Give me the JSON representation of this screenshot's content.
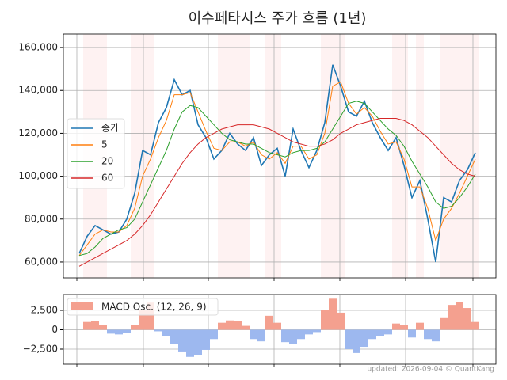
{
  "chart_data": [
    {
      "type": "line",
      "title": "이수페타시스 주가 흐름 (1년)",
      "ylim": [
        52600,
        166300
      ],
      "yticks": [
        {
          "value": 60000,
          "label": "60,000"
        },
        {
          "value": 80000,
          "label": "80,000"
        },
        {
          "value": 100000,
          "label": "100,000"
        },
        {
          "value": 120000,
          "label": "120,000"
        },
        {
          "value": 140000,
          "label": "140,000"
        },
        {
          "value": 160000,
          "label": "160,000"
        }
      ],
      "grid": true,
      "legend": "center left",
      "series": [
        {
          "name": "종가",
          "color": "#1f77b4",
          "values": [
            64000,
            72000,
            77000,
            75000,
            73000,
            74000,
            80000,
            92000,
            112000,
            110000,
            125000,
            132000,
            145000,
            138000,
            140000,
            124000,
            118000,
            108000,
            112000,
            120000,
            115000,
            112000,
            118000,
            105000,
            110000,
            113000,
            100000,
            122000,
            112000,
            104000,
            112000,
            125000,
            152000,
            142000,
            130000,
            128000,
            135000,
            125000,
            118000,
            112000,
            118000,
            105000,
            90000,
            98000,
            80000,
            60000,
            90000,
            88000,
            98000,
            103000,
            111000
          ]
        },
        {
          "name": "5",
          "color": "#ff7f0e",
          "values": [
            63000,
            68000,
            73000,
            75000,
            74000,
            74000,
            77000,
            85000,
            100000,
            108000,
            118000,
            126000,
            138000,
            138000,
            139000,
            130000,
            121000,
            113000,
            112000,
            116000,
            116000,
            114000,
            116000,
            110000,
            108000,
            111000,
            106000,
            114000,
            114000,
            108000,
            110000,
            120000,
            142000,
            144000,
            134000,
            129000,
            132000,
            128000,
            121000,
            115000,
            116000,
            108000,
            95000,
            95000,
            85000,
            70000,
            80000,
            85000,
            92000,
            100000,
            108000
          ]
        },
        {
          "name": "20",
          "color": "#2ca02c",
          "values": [
            63000,
            64000,
            67000,
            71000,
            73000,
            75000,
            76000,
            80000,
            88000,
            96000,
            104000,
            112000,
            122000,
            130000,
            133000,
            132000,
            128000,
            124000,
            120000,
            117000,
            116000,
            115000,
            115000,
            113000,
            111000,
            110000,
            109000,
            111000,
            112000,
            112000,
            113000,
            116000,
            122000,
            128000,
            134000,
            135000,
            134000,
            130000,
            126000,
            122000,
            119000,
            114000,
            107000,
            101000,
            95000,
            88000,
            85000,
            86000,
            90000,
            95000,
            101000
          ]
        },
        {
          "name": "60",
          "color": "#d62728",
          "values": [
            58000,
            60000,
            62000,
            64000,
            66000,
            68000,
            70000,
            73000,
            77000,
            82000,
            88000,
            94000,
            100000,
            106000,
            111000,
            115000,
            118000,
            120000,
            122000,
            123000,
            124000,
            124000,
            124000,
            123000,
            122000,
            120000,
            118000,
            116000,
            115000,
            114000,
            114000,
            115000,
            117000,
            120000,
            122000,
            124000,
            125000,
            126000,
            127000,
            127000,
            127000,
            126000,
            124000,
            121000,
            118000,
            114000,
            110000,
            106000,
            103000,
            101000,
            100000
          ]
        }
      ]
    },
    {
      "type": "bar",
      "ylim": [
        -4440,
        4540
      ],
      "yticks": [
        {
          "value": -2500,
          "label": "−2,500"
        },
        0,
        {
          "value": 2500,
          "label": "2,500"
        }
      ],
      "grid": true,
      "legend": "upper left",
      "series": [
        {
          "name": "MACD Osc. (12, 26, 9)",
          "color": "#f4a08f",
          "negative_color": "#9db8ef",
          "values": [
            0,
            1000,
            1100,
            600,
            -500,
            -600,
            -400,
            600,
            2500,
            3500,
            -200,
            -800,
            -1800,
            -2800,
            -3500,
            -3300,
            -2600,
            -1200,
            900,
            1200,
            1100,
            500,
            -1200,
            -1500,
            1800,
            900,
            -1600,
            -1800,
            -1200,
            -600,
            -300,
            2500,
            4000,
            2200,
            -2500,
            -3000,
            -2200,
            -1200,
            -800,
            -600,
            800,
            600,
            -1000,
            900,
            -1200,
            -1500,
            1500,
            3200,
            3600,
            2800,
            1000
          ]
        }
      ]
    }
  ],
  "footer": "updated: 2026-09-04 © QuantKang"
}
